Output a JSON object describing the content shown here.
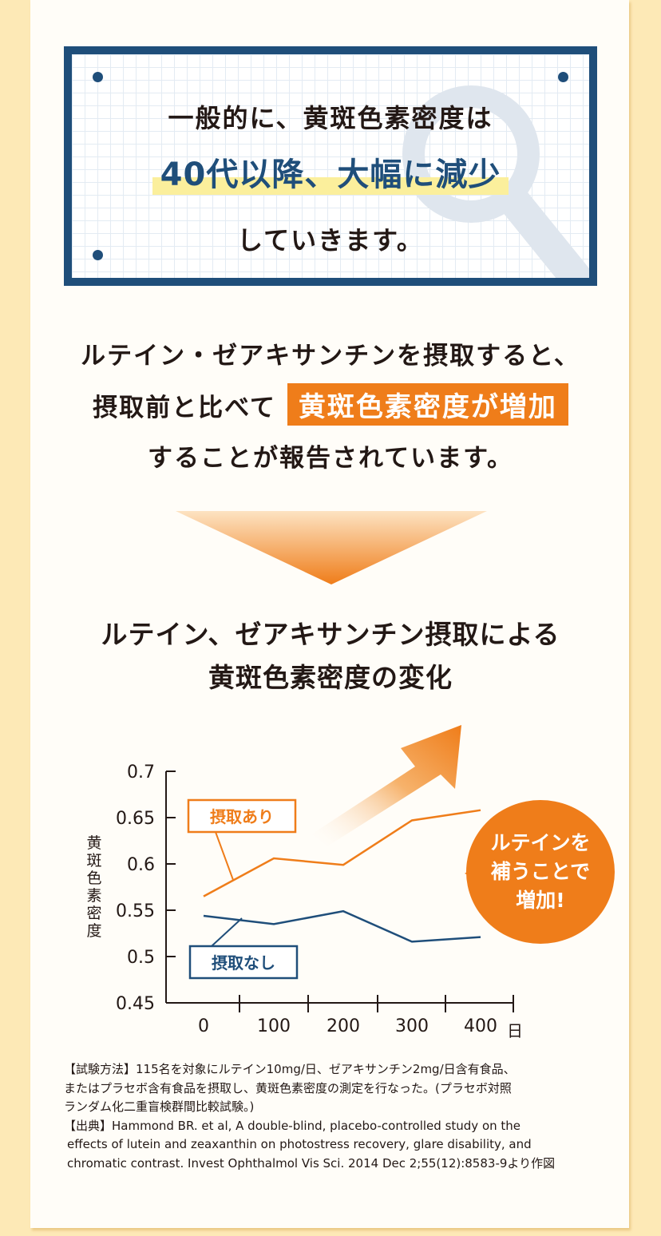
{
  "intro": {
    "line1": "一般的に、黄斑色素密度は",
    "line2": "40代以降、大幅に減少",
    "line3": "していきます。"
  },
  "statement": {
    "line1": "ルテイン・ゼアキサンチンを摂取すると、",
    "line2_prefix": "摂取前と比べて",
    "line2_highlight": "黄斑色素密度が増加",
    "line3": "することが報告されています。"
  },
  "chart_title": {
    "line1": "ルテイン、ゼアキサンチン摂取による",
    "line2": "黄斑色素密度の変化"
  },
  "chart_data": {
    "type": "line",
    "ylabel": "黄斑色素密度",
    "xlabel": "日",
    "x": [
      0,
      100,
      200,
      300,
      400
    ],
    "xticks": [
      "0",
      "100",
      "200",
      "300",
      "400"
    ],
    "yticks": [
      "0.7",
      "0.65",
      "0.6",
      "0.55",
      "0.5",
      "0.45"
    ],
    "ylim": [
      0.45,
      0.7
    ],
    "series": [
      {
        "name": "摂取あり",
        "color": "#ef7d1a",
        "values": [
          0.565,
          0.606,
          0.599,
          0.647,
          0.658
        ]
      },
      {
        "name": "摂取なし",
        "color": "#1f4e7a",
        "values": [
          0.544,
          0.535,
          0.549,
          0.516,
          0.521
        ]
      }
    ],
    "grid": false
  },
  "badge": {
    "line1": "ルテインを",
    "line2": "補うことで",
    "line3": "増加!"
  },
  "notes": {
    "method": "【試験方法】115名を対象にルテイン10mg/日、ゼアキサンチン2mg/日含有食品、",
    "method2": "またはプラセボ含有食品を摂取し、黄斑色素密度の測定を行なった。(プラセボ対照",
    "method3": "ランダム化二重盲検群間比較試験。)",
    "source": "【出典】Hammond BR. et al, A double-blind, placebo-controlled study on the",
    "source2": "effects of lutein and zeaxanthin on photostress recovery, glare disability, and",
    "source3": "chromatic contrast. Invest Ophthalmol Vis Sci. 2014 Dec 2;55(12):8583-9より作図"
  },
  "colors": {
    "navy": "#1f4e7a",
    "orange": "#ef7d1a",
    "background": "#fde9b6"
  }
}
